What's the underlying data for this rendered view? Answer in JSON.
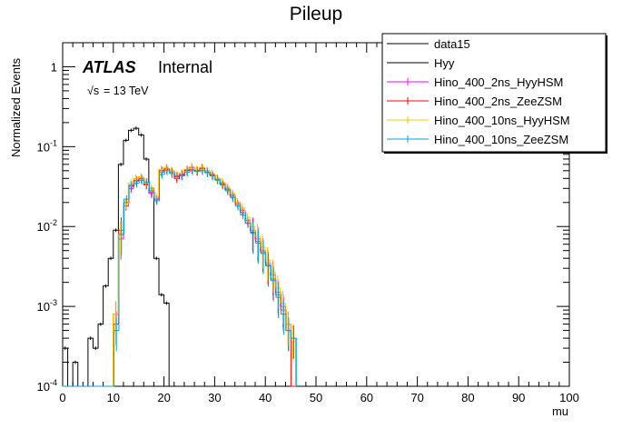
{
  "chart_data": {
    "type": "line",
    "title": "Pileup",
    "xlabel": "mu",
    "ylabel": "Normalized Events",
    "xlim": [
      0,
      100
    ],
    "ylim": [
      0.0001,
      2
    ],
    "yscale": "log",
    "x_ticks": [
      "0",
      "10",
      "20",
      "30",
      "40",
      "50",
      "60",
      "70",
      "80",
      "90",
      "100"
    ],
    "y_ticks": [
      {
        "value": 0.0001,
        "base": "10",
        "exp": "-4"
      },
      {
        "value": 0.001,
        "base": "10",
        "exp": "-3"
      },
      {
        "value": 0.01,
        "base": "10",
        "exp": "-2"
      },
      {
        "value": 0.1,
        "base": "10",
        "exp": "-1"
      },
      {
        "value": 1,
        "base": "1",
        "exp": ""
      }
    ],
    "atlas_label": "ATLAS",
    "internal_label": "Internal",
    "energy_label": "= 13 TeV",
    "energy_symbol": "√s",
    "legend_position": "top-right",
    "bins_start": 0,
    "bin_width": 1,
    "series": [
      {
        "name": "data15",
        "color": "#000000",
        "values": [
          0.0003,
          0.0001,
          0.0002,
          0.0001,
          0.0001,
          0.0004,
          0.0003,
          0.0006,
          0.0018,
          0.004,
          0.009,
          0.06,
          0.12,
          0.16,
          0.17,
          0.14,
          0.07,
          0.03,
          0.004,
          0.0014,
          0.0011,
          0.0001
        ]
      },
      {
        "name": "Hyy",
        "color": "#000000",
        "values": [
          0.0003,
          0.0001,
          0.0002,
          0.0001,
          0.0001,
          0.0004,
          0.0003,
          0.0006,
          0.0018,
          0.004,
          0.009,
          0.06,
          0.12,
          0.16,
          0.17,
          0.14,
          0.07,
          0.03,
          0.004,
          0.0014,
          0.0011,
          0.0001
        ]
      },
      {
        "name": "Hino_400_2ns_HyyHSM",
        "color": "#ff00ff",
        "values": [
          0.0001,
          0.0001,
          0.0001,
          0.0001,
          0.0001,
          0.0001,
          0.0001,
          0.0001,
          0.0001,
          0.0001,
          0.0008,
          0.007,
          0.018,
          0.03,
          0.037,
          0.04,
          0.033,
          0.026,
          0.022,
          0.048,
          0.053,
          0.05,
          0.042,
          0.044,
          0.05,
          0.055,
          0.05,
          0.053,
          0.05,
          0.045,
          0.04,
          0.035,
          0.03,
          0.025,
          0.02,
          0.016,
          0.012,
          0.009,
          0.007,
          0.005,
          0.0035,
          0.0025,
          0.0015,
          0.001,
          0.0006,
          0.0004
        ]
      },
      {
        "name": "Hino_400_2ns_ZeeZSM",
        "color": "#ff0000",
        "values": [
          0.0001,
          0.0001,
          0.0001,
          0.0001,
          0.0001,
          0.0001,
          0.0001,
          0.0001,
          0.0001,
          0.0001,
          0.0006,
          0.009,
          0.02,
          0.032,
          0.038,
          0.04,
          0.034,
          0.028,
          0.022,
          0.05,
          0.052,
          0.048,
          0.04,
          0.045,
          0.051,
          0.052,
          0.05,
          0.054,
          0.048,
          0.044,
          0.039,
          0.034,
          0.029,
          0.024,
          0.019,
          0.015,
          0.011,
          0.0085,
          0.0065,
          0.0048,
          0.0033,
          0.0022,
          0.0014,
          0.0009,
          0.0005,
          0.0001
        ]
      },
      {
        "name": "Hino_400_10ns_HyyHSM",
        "color": "#ffc000",
        "values": [
          0.0001,
          0.0001,
          0.0001,
          0.0001,
          0.0001,
          0.0001,
          0.0001,
          0.0001,
          0.0001,
          0.0001,
          0.0008,
          0.008,
          0.019,
          0.035,
          0.04,
          0.042,
          0.035,
          0.03,
          0.024,
          0.052,
          0.055,
          0.05,
          0.045,
          0.047,
          0.052,
          0.056,
          0.052,
          0.055,
          0.05,
          0.046,
          0.04,
          0.036,
          0.031,
          0.026,
          0.02,
          0.017,
          0.013,
          0.01,
          0.0075,
          0.0055,
          0.0038,
          0.0027,
          0.0017,
          0.0011,
          0.0006,
          0.0004
        ]
      },
      {
        "name": "Hino_400_10ns_ZeeZSM",
        "color": "#00a0e0",
        "values": [
          0.0001,
          0.0001,
          0.0001,
          0.0001,
          0.0001,
          0.0001,
          0.0001,
          0.0001,
          0.0001,
          0.0001,
          0.0005,
          0.008,
          0.022,
          0.033,
          0.035,
          0.038,
          0.036,
          0.027,
          0.021,
          0.045,
          0.05,
          0.046,
          0.043,
          0.043,
          0.048,
          0.05,
          0.049,
          0.05,
          0.047,
          0.043,
          0.038,
          0.033,
          0.028,
          0.023,
          0.018,
          0.014,
          0.011,
          0.0082,
          0.0062,
          0.0046,
          0.0032,
          0.0021,
          0.0013,
          0.0008,
          0.0005,
          0.0004
        ]
      }
    ]
  }
}
